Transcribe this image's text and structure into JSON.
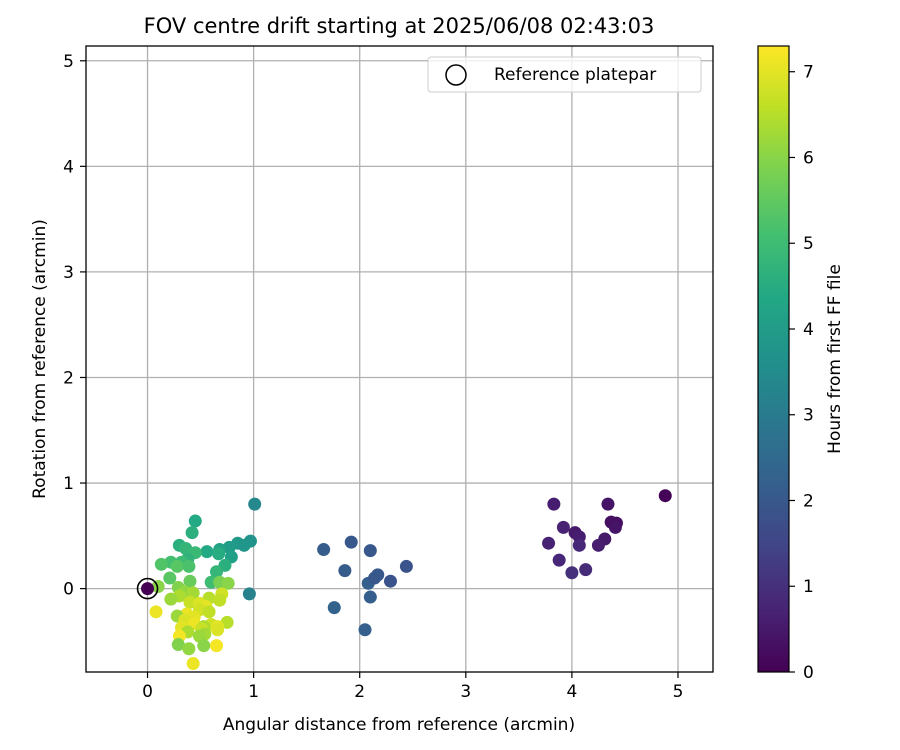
{
  "chart_data": {
    "type": "scatter",
    "title": "FOV centre drift starting at 2025/06/08 02:43:03",
    "xlabel": "Angular distance from reference (arcmin)",
    "ylabel": "Rotation from reference (arcmin)",
    "xlim": [
      -0.58,
      5.33
    ],
    "ylim": [
      -0.79,
      5.14
    ],
    "xticks": [
      0,
      1,
      2,
      3,
      4,
      5
    ],
    "yticks": [
      0,
      1,
      2,
      3,
      4,
      5
    ],
    "grid": true,
    "legend": {
      "position": "top-right",
      "entries": [
        "Reference platepar"
      ]
    },
    "colorbar": {
      "label": "Hours from first FF file",
      "range": [
        0,
        7.3
      ],
      "ticks": [
        0,
        1,
        2,
        3,
        4,
        5,
        6,
        7
      ],
      "colormap": "viridis"
    },
    "reference_point": {
      "x": 0,
      "y": 0
    },
    "points": [
      {
        "x": 4.88,
        "y": 0.88,
        "c": 0.05
      },
      {
        "x": 3.83,
        "y": 0.8,
        "c": 0.6
      },
      {
        "x": 4.34,
        "y": 0.8,
        "c": 0.4
      },
      {
        "x": 3.92,
        "y": 0.58,
        "c": 0.7
      },
      {
        "x": 4.03,
        "y": 0.53,
        "c": 0.5
      },
      {
        "x": 4.07,
        "y": 0.49,
        "c": 0.6
      },
      {
        "x": 4.37,
        "y": 0.63,
        "c": 0.3
      },
      {
        "x": 4.42,
        "y": 0.62,
        "c": 0.3
      },
      {
        "x": 4.41,
        "y": 0.58,
        "c": 0.4
      },
      {
        "x": 4.31,
        "y": 0.47,
        "c": 0.5
      },
      {
        "x": 3.78,
        "y": 0.43,
        "c": 0.7
      },
      {
        "x": 4.07,
        "y": 0.41,
        "c": 0.8
      },
      {
        "x": 4.25,
        "y": 0.41,
        "c": 0.6
      },
      {
        "x": 3.88,
        "y": 0.27,
        "c": 0.8
      },
      {
        "x": 4.13,
        "y": 0.18,
        "c": 0.9
      },
      {
        "x": 4.0,
        "y": 0.15,
        "c": 1.0
      },
      {
        "x": 1.92,
        "y": 0.44,
        "c": 2.0
      },
      {
        "x": 1.66,
        "y": 0.37,
        "c": 2.1
      },
      {
        "x": 2.1,
        "y": 0.36,
        "c": 2.0
      },
      {
        "x": 2.44,
        "y": 0.21,
        "c": 1.9
      },
      {
        "x": 1.86,
        "y": 0.17,
        "c": 2.1
      },
      {
        "x": 2.17,
        "y": 0.13,
        "c": 2.0
      },
      {
        "x": 2.29,
        "y": 0.07,
        "c": 1.9
      },
      {
        "x": 2.08,
        "y": 0.05,
        "c": 2.2
      },
      {
        "x": 2.14,
        "y": 0.1,
        "c": 2.0
      },
      {
        "x": 2.1,
        "y": -0.08,
        "c": 2.2
      },
      {
        "x": 1.76,
        "y": -0.18,
        "c": 2.3
      },
      {
        "x": 2.05,
        "y": -0.39,
        "c": 2.2
      },
      {
        "x": 1.01,
        "y": 0.8,
        "c": 3.4
      },
      {
        "x": 0.97,
        "y": 0.45,
        "c": 3.7
      },
      {
        "x": 0.96,
        "y": -0.05,
        "c": 3.2
      },
      {
        "x": 0.85,
        "y": 0.43,
        "c": 3.9
      },
      {
        "x": 0.91,
        "y": 0.41,
        "c": 3.8
      },
      {
        "x": 0.77,
        "y": 0.39,
        "c": 4.0
      },
      {
        "x": 0.68,
        "y": 0.37,
        "c": 4.2
      },
      {
        "x": 0.79,
        "y": 0.3,
        "c": 4.1
      },
      {
        "x": 0.56,
        "y": 0.35,
        "c": 4.4
      },
      {
        "x": 0.67,
        "y": 0.33,
        "c": 4.5
      },
      {
        "x": 0.45,
        "y": 0.64,
        "c": 4.4
      },
      {
        "x": 0.42,
        "y": 0.53,
        "c": 4.6
      },
      {
        "x": 0.3,
        "y": 0.41,
        "c": 4.6
      },
      {
        "x": 0.36,
        "y": 0.38,
        "c": 4.8
      },
      {
        "x": 0.45,
        "y": 0.34,
        "c": 4.9
      },
      {
        "x": 0.38,
        "y": 0.28,
        "c": 4.7
      },
      {
        "x": 0.32,
        "y": 0.25,
        "c": 5.0
      },
      {
        "x": 0.22,
        "y": 0.25,
        "c": 5.1
      },
      {
        "x": 0.13,
        "y": 0.23,
        "c": 5.3
      },
      {
        "x": 0.28,
        "y": 0.21,
        "c": 5.4
      },
      {
        "x": 0.39,
        "y": 0.21,
        "c": 5.2
      },
      {
        "x": 0.73,
        "y": 0.22,
        "c": 4.6
      },
      {
        "x": 0.65,
        "y": 0.16,
        "c": 4.8
      },
      {
        "x": 0.6,
        "y": 0.06,
        "c": 5.0
      },
      {
        "x": 0.21,
        "y": 0.1,
        "c": 5.4
      },
      {
        "x": 0.4,
        "y": 0.07,
        "c": 5.6
      },
      {
        "x": 0.68,
        "y": 0.06,
        "c": 5.8
      },
      {
        "x": 0.76,
        "y": 0.05,
        "c": 6.0
      },
      {
        "x": 0.1,
        "y": 0.02,
        "c": 6.0
      },
      {
        "x": 0.29,
        "y": 0.01,
        "c": 5.9
      },
      {
        "x": 0.35,
        "y": -0.03,
        "c": 6.1
      },
      {
        "x": 0.43,
        "y": -0.04,
        "c": 6.3
      },
      {
        "x": 0.3,
        "y": -0.07,
        "c": 6.4
      },
      {
        "x": 0.58,
        "y": -0.09,
        "c": 6.5
      },
      {
        "x": 0.7,
        "y": -0.05,
        "c": 6.8
      },
      {
        "x": 0.68,
        "y": -0.11,
        "c": 6.6
      },
      {
        "x": 0.22,
        "y": -0.1,
        "c": 6.2
      },
      {
        "x": 0.4,
        "y": -0.13,
        "c": 6.7
      },
      {
        "x": 0.49,
        "y": -0.14,
        "c": 6.9
      },
      {
        "x": 0.55,
        "y": -0.17,
        "c": 7.0
      },
      {
        "x": 0.49,
        "y": -0.2,
        "c": 6.8
      },
      {
        "x": 0.58,
        "y": -0.22,
        "c": 6.6
      },
      {
        "x": 0.08,
        "y": -0.22,
        "c": 7.1
      },
      {
        "x": 0.37,
        "y": -0.24,
        "c": 7.1
      },
      {
        "x": 0.28,
        "y": -0.26,
        "c": 6.2
      },
      {
        "x": 0.44,
        "y": -0.27,
        "c": 7.0
      },
      {
        "x": 0.35,
        "y": -0.3,
        "c": 6.9
      },
      {
        "x": 0.75,
        "y": -0.32,
        "c": 6.5
      },
      {
        "x": 0.44,
        "y": -0.33,
        "c": 7.1
      },
      {
        "x": 0.6,
        "y": -0.34,
        "c": 6.8
      },
      {
        "x": 0.53,
        "y": -0.36,
        "c": 6.4
      },
      {
        "x": 0.66,
        "y": -0.36,
        "c": 7.0
      },
      {
        "x": 0.32,
        "y": -0.37,
        "c": 7.0
      },
      {
        "x": 0.51,
        "y": -0.38,
        "c": 6.7
      },
      {
        "x": 0.66,
        "y": -0.39,
        "c": 6.9
      },
      {
        "x": 0.38,
        "y": -0.41,
        "c": 6.4
      },
      {
        "x": 0.54,
        "y": -0.43,
        "c": 6.3
      },
      {
        "x": 0.3,
        "y": -0.45,
        "c": 7.2
      },
      {
        "x": 0.49,
        "y": -0.45,
        "c": 6.2
      },
      {
        "x": 0.29,
        "y": -0.53,
        "c": 5.9
      },
      {
        "x": 0.53,
        "y": -0.54,
        "c": 6.0
      },
      {
        "x": 0.65,
        "y": -0.54,
        "c": 7.2
      },
      {
        "x": 0.39,
        "y": -0.57,
        "c": 6.1
      },
      {
        "x": 0.43,
        "y": -0.71,
        "c": 7.1
      }
    ]
  }
}
